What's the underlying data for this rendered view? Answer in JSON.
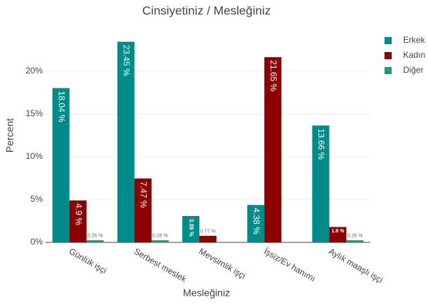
{
  "chart_data": {
    "type": "bar",
    "title": "Cinsiyetiniz / Mesleğiniz",
    "x_label": "Mesleğiniz",
    "y_label": "Percent",
    "categories": [
      "Günlük işçi",
      "Serbest meslek",
      "Mevsimlik işçi",
      "İşsiz/Ev hanımı",
      "Aylık maaşlı işçi"
    ],
    "series": [
      {
        "name": "Erkek",
        "color": "#008b8b",
        "values": [
          18.04,
          23.45,
          3.09,
          4.38,
          13.66
        ],
        "value_labels": [
          "18.04 %",
          "23.45 %",
          "3.09 %",
          "4.38 %",
          "13.66 %"
        ]
      },
      {
        "name": "Kadın",
        "color": "#8b0000",
        "values": [
          4.9,
          7.47,
          0.77,
          21.65,
          1.8
        ],
        "value_labels": [
          "4.9 %",
          "7.47 %",
          "0.77 %",
          "21.65 %",
          "1.8 %"
        ]
      },
      {
        "name": "Diğer",
        "color": "#1b9e77",
        "values": [
          0.26,
          0.26,
          null,
          null,
          0.26
        ],
        "value_labels": [
          "0.26 %",
          "0.26 %",
          null,
          null,
          "0.26 %"
        ]
      }
    ],
    "ylim": [
      0,
      25
    ],
    "yticks": [
      {
        "value": 0,
        "label": "0%"
      },
      {
        "value": 5,
        "label": "5%"
      },
      {
        "value": 10,
        "label": "10%"
      },
      {
        "value": 15,
        "label": "15%"
      },
      {
        "value": 20,
        "label": "20%"
      }
    ],
    "grid": true,
    "legend": "right"
  }
}
